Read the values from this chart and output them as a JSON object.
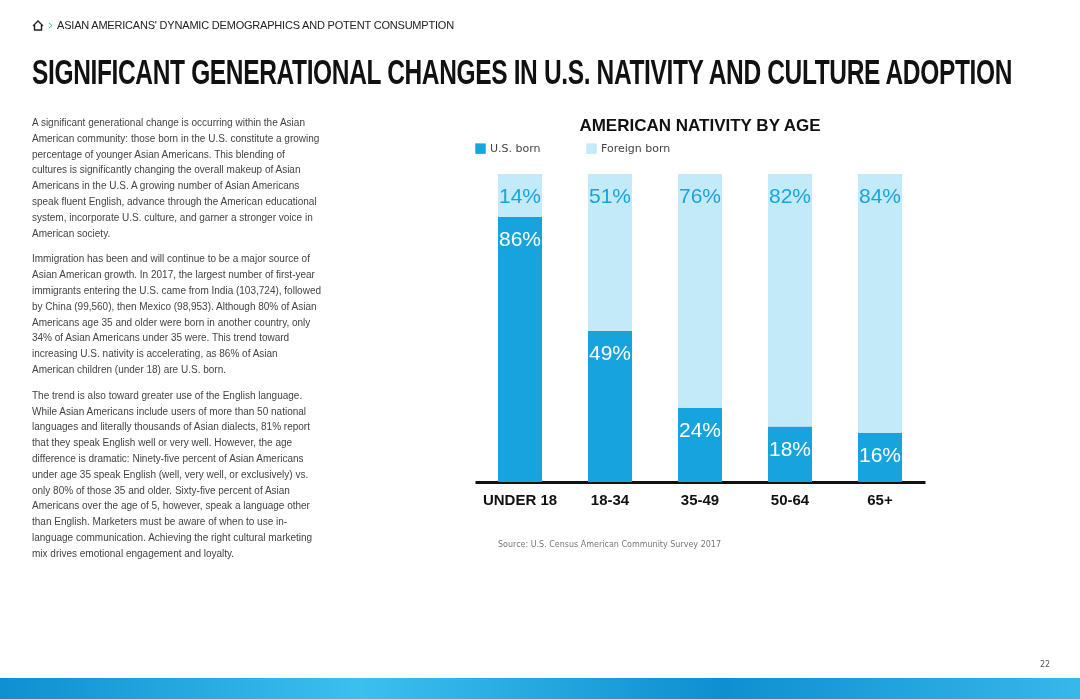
{
  "chart_data": {
    "type": "bar",
    "stacked": true,
    "title": "SIGNIFICANT GENERATIONAL CHANGES IN U.S. NATIVITY AND CULTURE ADOPTION",
    "subtitle": "AMERICAN NATIVITY BY AGE",
    "categories": [
      "UNDER 18",
      "18-34",
      "35-49",
      "50-64",
      "65+"
    ],
    "series": [
      {
        "name": "U.S. born",
        "color": "#17a4de",
        "values": [
          86,
          49,
          24,
          18,
          16
        ],
        "value_labels": [
          "86%",
          "49%",
          "24%",
          "18%",
          "16%"
        ]
      },
      {
        "name": "Foreign born",
        "color": "#c2eaf9",
        "values": [
          14,
          51,
          76,
          82,
          84
        ],
        "value_labels": [
          "14%",
          "51%",
          "76%",
          "82%",
          "84%"
        ]
      }
    ],
    "legend": "top",
    "annotations": [
      "ASIAN AMERICANS' DYNAMIC DEMOGRAPHICS AND POTENT CONSUMPTION",
      "A significant generational change is occurring within the Asian American community: those born in the U.S. constitute a growing percentage of younger Asian Americans. This blending of cultures is significantly changing the overall makeup of Asian Americans in the U.S. A growing number of Asian Americans speak fluent English, advance through the American educational system, incorporate U.S. culture, and garner a stronger voice in American society.",
      "Immigration has been and will continue to be a major source of Asian American growth. In 2017, the largest number of first-year immigrants entering the U.S. came from India (103,724), followed by China (99,560), then Mexico (98,953). Although 80% of Asian Americans age 35 and older were born in another country, only 34% of Asian Americans under 35 were. This trend toward increasing U.S. nativity is accelerating, as 86% of Asian American children (under 18) are U.S. born.",
      "The trend is also toward greater use of the English language. While Asian Americans include users of more than 50 national languages and literally thousands of Asian dialects, 81% report that they speak English well or very well. However, the age difference is dramatic: Ninety-five percent of Asian Americans under age 35 speak English (well, very well, or exclusively) vs. only 80% of those 35 and older. Sixty-five percent of Asian Americans over the age of 5, however, speak a language other than English. Marketers must be aware of when to use in-language communication. Achieving the right cultural marketing mix drives emotional engagement and loyalty.",
      "Source: U.S. Census American Community Survey 2017",
      "22"
    ]
  }
}
